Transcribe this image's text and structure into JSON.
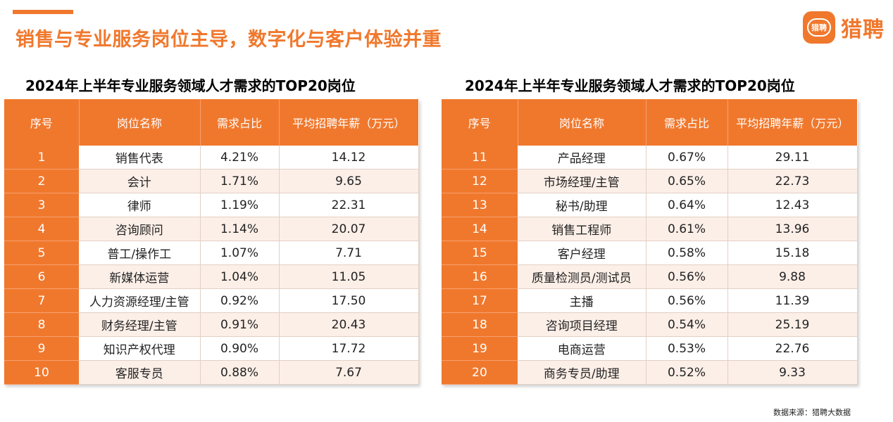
{
  "headline": "销售与专业服务岗位主导，数字化与客户体验并重",
  "logo": {
    "badge_text": "猎聘",
    "text": "猎聘"
  },
  "left_table": {
    "title": "2024年上半年专业服务领域人才需求的TOP20岗位",
    "headers": [
      "序号",
      "岗位名称",
      "需求占比",
      "平均招聘年薪（万元）"
    ],
    "rows": [
      [
        "1",
        "销售代表",
        "4.21%",
        "14.12"
      ],
      [
        "2",
        "会计",
        "1.71%",
        "9.65"
      ],
      [
        "3",
        "律师",
        "1.19%",
        "22.31"
      ],
      [
        "4",
        "咨询顾问",
        "1.14%",
        "20.07"
      ],
      [
        "5",
        "普工/操作工",
        "1.07%",
        "7.71"
      ],
      [
        "6",
        "新媒体运营",
        "1.04%",
        "11.05"
      ],
      [
        "7",
        "人力资源经理/主管",
        "0.92%",
        "17.50"
      ],
      [
        "8",
        "财务经理/主管",
        "0.91%",
        "20.43"
      ],
      [
        "9",
        "知识产权代理",
        "0.90%",
        "17.72"
      ],
      [
        "10",
        "客服专员",
        "0.88%",
        "7.67"
      ]
    ]
  },
  "right_table": {
    "title": "2024年上半年专业服务领域人才需求的TOP20岗位",
    "headers": [
      "序号",
      "岗位名称",
      "需求占比",
      "平均招聘年薪（万元）"
    ],
    "rows": [
      [
        "11",
        "产品经理",
        "0.67%",
        "29.11"
      ],
      [
        "12",
        "市场经理/主管",
        "0.65%",
        "22.73"
      ],
      [
        "13",
        "秘书/助理",
        "0.64%",
        "12.43"
      ],
      [
        "14",
        "销售工程师",
        "0.61%",
        "13.96"
      ],
      [
        "15",
        "客户经理",
        "0.58%",
        "15.18"
      ],
      [
        "16",
        "质量检测员/测试员",
        "0.56%",
        "9.88"
      ],
      [
        "17",
        "主播",
        "0.56%",
        "11.39"
      ],
      [
        "18",
        "咨询项目经理",
        "0.54%",
        "25.19"
      ],
      [
        "19",
        "电商运营",
        "0.53%",
        "22.76"
      ],
      [
        "20",
        "商务专员/助理",
        "0.52%",
        "9.33"
      ]
    ]
  },
  "source": "数据来源：猎聘大数据",
  "colors": {
    "accent": "#F0782D",
    "row_alt": "#FCEFE8"
  }
}
